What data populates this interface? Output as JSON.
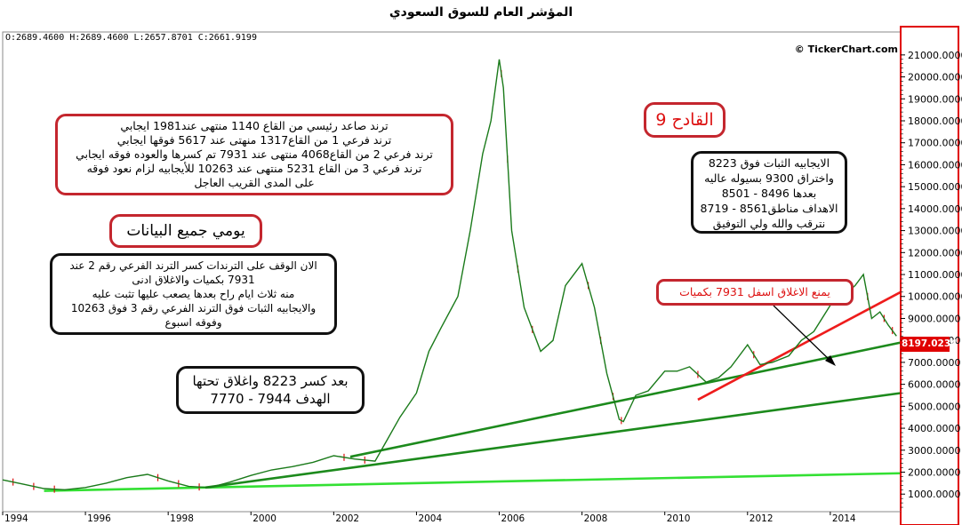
{
  "title": "المؤشر العام للسوق السعودي",
  "ohlc": "O:2689.4600   H:2689.4600   L:2657.8701   C:2661.9199",
  "copyright": "© TickerChart.com",
  "price_tag": "8197.0234",
  "colors": {
    "price": "#1a7a1a",
    "down": "#d11",
    "trend_dark": "#1c8a1c",
    "trend_light": "#33e033",
    "axis": "#e00000"
  },
  "notes": {
    "trend_box": "ترند صاعد رئيسي من القاع 1140 منتهى عند1981 ايجابي\nترند فرعي 1 من القاع1317 منهتى عند 5617 فوقها ايجابي\nترند فرعي 2 من القاع4068 منتهى عند 7931 تم كسرها والعوده فوقه ايجابي\nترند فرعي 3 من القاع 5231 منتهى عند 10263 للأيجابيه لزام نعود فوقه\nعلى المدى القريب العاجل",
    "daily": "يومي جميع البيانات",
    "stop": "الان الوقف على الترندات كسر الترند الفرعي رقم 2 عند\n7931 بكميات والاغلاق ادنى\nمنه ثلاث ايام راح بعدها يصعب عليها تثبت عليه\nوالايجابيه الثبات فوق الترند الفرعي رقم 3 فوق 10263\nوفوقه اسبوع",
    "break": "بعد كسر 8223 واغلاق تحتها\nالهدف 7944 - 7770",
    "qadeh": "القادح 9",
    "positive": "الايجابيه الثبات فوق 8223\nواختراق 9300 بسيوله عاليه\nبعدها 8496 - 8501\nالاهداف مناطق8561 - 8719\nنترقب والله ولي التوفيق",
    "prevent": "يمنع الاغلاق اسفل 7931 بكميات"
  },
  "chart_data": {
    "type": "line",
    "title": "المؤشر العام للسوق السعودي",
    "xlabel": "",
    "ylabel": "",
    "x_ticks": [
      "1994",
      "1996",
      "1998",
      "2000",
      "2002",
      "2004",
      "2006",
      "2008",
      "2010",
      "2012",
      "2014"
    ],
    "y_ticks": [
      "1000.0000",
      "2000.0000",
      "3000.0000",
      "4000.0000",
      "5000.0000",
      "6000.0000",
      "7000.0000",
      "8000.0000",
      "9000.0000",
      "10000.0000",
      "11000.0000",
      "12000.0000",
      "13000.0000",
      "14000.0000",
      "15000.0000",
      "16000.0000",
      "17000.0000",
      "18000.0000",
      "19000.0000",
      "20000.0000",
      "21000.0000"
    ],
    "xlim": [
      1994.0,
      2015.7
    ],
    "ylim": [
      200,
      21600
    ],
    "series": [
      {
        "x": [
          1994.0,
          1994.5,
          1995.0,
          1995.5,
          1996.0,
          1996.5,
          1997.0,
          1997.5,
          1998.0,
          1998.5,
          1999.0,
          1999.5,
          2000.0,
          2000.5,
          2001.0,
          2001.5,
          2002.0,
          2002.5,
          2003.0,
          2003.3,
          2003.6,
          2004.0,
          2004.3,
          2004.6,
          2005.0,
          2005.3,
          2005.6,
          2005.8,
          2006.0,
          2006.1,
          2006.3,
          2006.6,
          2007.0,
          2007.3,
          2007.6,
          2008.0,
          2008.3,
          2008.6,
          2008.9,
          2009.0,
          2009.3,
          2009.6,
          2010.0,
          2010.3,
          2010.6,
          2011.0,
          2011.3,
          2011.6,
          2012.0,
          2012.3,
          2012.6,
          2013.0,
          2013.3,
          2013.6,
          2014.0,
          2014.3,
          2014.6,
          2014.8,
          2015.0,
          2015.2,
          2015.4,
          2015.6
        ],
        "y": [
          1650,
          1450,
          1250,
          1200,
          1300,
          1500,
          1750,
          1900,
          1600,
          1350,
          1300,
          1550,
          1850,
          2100,
          2250,
          2450,
          2750,
          2600,
          2500,
          3500,
          4500,
          5600,
          7500,
          8600,
          10000,
          13000,
          16500,
          18000,
          20800,
          19500,
          13000,
          9500,
          7500,
          8000,
          10500,
          11500,
          9500,
          6500,
          4400,
          4300,
          5500,
          5700,
          6600,
          6600,
          6800,
          6100,
          6300,
          6800,
          7800,
          6900,
          7000,
          7300,
          8000,
          8400,
          9600,
          10000,
          10500,
          11000,
          9000,
          9300,
          8700,
          8197
        ]
      }
    ],
    "trendlines": [
      {
        "x": [
          1995.0,
          2015.7
        ],
        "y": [
          1150,
          1950
        ],
        "color": "light-green"
      },
      {
        "x": [
          1998.9,
          2015.7
        ],
        "y": [
          1300,
          5600
        ],
        "color": "dark-green"
      },
      {
        "x": [
          2002.4,
          2015.7
        ],
        "y": [
          2700,
          7900
        ],
        "color": "dark-green"
      },
      {
        "x": [
          2010.8,
          2015.7
        ],
        "y": [
          5300,
          10200
        ],
        "color": "red"
      }
    ]
  }
}
